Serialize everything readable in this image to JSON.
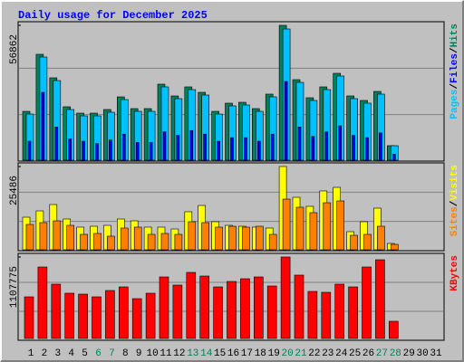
{
  "chart_data": [
    {
      "type": "bar",
      "title": "Daily usage for December 2025",
      "legend_separator": "/",
      "ylim": [
        0,
        56862
      ],
      "yticks": [
        56862
      ],
      "series": [
        {
          "name": "Hits",
          "color": "#00805c",
          "values": [
            20600,
            44650,
            34730,
            22520,
            19840,
            19840,
            21370,
            26710,
            21750,
            21750,
            32060,
            27100,
            30910,
            28620,
            20600,
            24040,
            24420,
            21750,
            27860,
            56862,
            33960,
            26330,
            30910,
            36630,
            27100,
            25190,
            29000,
            6110,
            null,
            null,
            null
          ]
        },
        {
          "name": "Files",
          "color": "#0000ff",
          "values": [
            8000,
            28600,
            14000,
            9000,
            8000,
            7000,
            8500,
            11000,
            7500,
            7500,
            12000,
            10500,
            12500,
            11000,
            8000,
            9500,
            9500,
            8000,
            11000,
            33200,
            14000,
            10000,
            12000,
            14500,
            10500,
            9500,
            11500,
            2500,
            null,
            null,
            null
          ]
        },
        {
          "name": "Pages",
          "color": "#00c0ff",
          "values": [
            19450,
            43500,
            33580,
            21370,
            18690,
            18690,
            20220,
            25560,
            20600,
            20600,
            30910,
            25950,
            29760,
            27480,
            19450,
            22900,
            23280,
            20600,
            26710,
            55330,
            32820,
            25190,
            29760,
            35490,
            25950,
            24040,
            27860,
            6110,
            null,
            null,
            null
          ]
        }
      ]
    },
    {
      "type": "bar",
      "legend_separator": "/",
      "ylim": [
        0,
        25486
      ],
      "yticks": [
        25486
      ],
      "series": [
        {
          "name": "Visits",
          "color": "#ffff00",
          "values": [
            9970,
            11910,
            13850,
            9420,
            6930,
            7200,
            7480,
            9420,
            8860,
            6930,
            6930,
            6370,
            11640,
            13570,
            8590,
            7480,
            7200,
            6930,
            6650,
            25486,
            16070,
            13300,
            18010,
            19110,
            5540,
            8590,
            12740,
            1940,
            null,
            null,
            null
          ]
        },
        {
          "name": "Sites",
          "color": "#ff8000",
          "values": [
            7760,
            8310,
            8860,
            7480,
            4710,
            4990,
            4160,
            6650,
            6930,
            4710,
            4990,
            4710,
            8590,
            8310,
            6930,
            7200,
            6930,
            7200,
            4710,
            15510,
            13020,
            11360,
            14400,
            14960,
            4430,
            4710,
            7200,
            1660,
            null,
            null,
            null
          ]
        }
      ]
    },
    {
      "type": "bar",
      "ylim": [
        0,
        1107775
      ],
      "yticks": [
        1107775
      ],
      "categories": [
        "1",
        "2",
        "3",
        "4",
        "5",
        "6",
        "7",
        "8",
        "9",
        "10",
        "11",
        "12",
        "13",
        "14",
        "15",
        "16",
        "17",
        "18",
        "19",
        "20",
        "21",
        "22",
        "23",
        "24",
        "25",
        "26",
        "27",
        "28",
        "29",
        "30",
        "31"
      ],
      "category_colors": [
        "#000000",
        "#000000",
        "#000000",
        "#000000",
        "#000000",
        "#00805c",
        "#00805c",
        "#000000",
        "#000000",
        "#000000",
        "#000000",
        "#000000",
        "#00805c",
        "#00805c",
        "#000000",
        "#000000",
        "#000000",
        "#000000",
        "#000000",
        "#00805c",
        "#00805c",
        "#000000",
        "#000000",
        "#000000",
        "#000000",
        "#000000",
        "#00805c",
        "#00805c",
        "#000000",
        "#000000",
        "#000000"
      ],
      "series": [
        {
          "name": "KBytes",
          "color": "#ff0000",
          "values": [
            566200,
            972400,
            738500,
            615400,
            603100,
            566200,
            652400,
            701600,
            541600,
            615400,
            837000,
            726200,
            898500,
            849300,
            701600,
            775400,
            812400,
            837000,
            713900,
            1107775,
            861600,
            640000,
            627700,
            738500,
            701600,
            972400,
            1070800,
            233900,
            null,
            null,
            null
          ]
        }
      ]
    }
  ]
}
